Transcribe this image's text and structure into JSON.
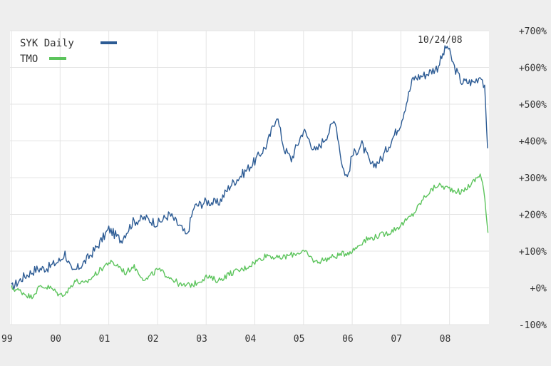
{
  "chart_data": {
    "type": "line",
    "date_label": "10/24/08",
    "x_tick_labels": [
      "99",
      "00",
      "01",
      "02",
      "03",
      "04",
      "05",
      "06",
      "07",
      "08"
    ],
    "x_tick_years": [
      1999,
      2000,
      2001,
      2002,
      2003,
      2004,
      2005,
      2006,
      2007,
      2008
    ],
    "x_range": [
      1998.97,
      2008.81
    ],
    "y_tick_labels": [
      "+700%",
      "+600%",
      "+500%",
      "+400%",
      "+300%",
      "+200%",
      "+100%",
      "+0%",
      "-100%"
    ],
    "y_tick_values": [
      700,
      600,
      500,
      400,
      300,
      200,
      100,
      0,
      -100
    ],
    "ylim": [
      -100,
      700
    ],
    "grid": true,
    "legend_position": "top-left",
    "series": [
      {
        "name": "SYK Daily",
        "color": "#2c5b94",
        "points": [
          [
            1999.0,
            0
          ],
          [
            1999.25,
            30
          ],
          [
            1999.5,
            50
          ],
          [
            1999.75,
            55
          ],
          [
            2000.0,
            75
          ],
          [
            2000.1,
            95
          ],
          [
            2000.25,
            40
          ],
          [
            2000.5,
            70
          ],
          [
            2000.75,
            110
          ],
          [
            2001.0,
            160
          ],
          [
            2001.25,
            130
          ],
          [
            2001.5,
            180
          ],
          [
            2001.75,
            190
          ],
          [
            2002.0,
            175
          ],
          [
            2002.25,
            200
          ],
          [
            2002.5,
            160
          ],
          [
            2002.6,
            140
          ],
          [
            2002.75,
            220
          ],
          [
            2003.0,
            235
          ],
          [
            2003.25,
            230
          ],
          [
            2003.5,
            280
          ],
          [
            2003.75,
            310
          ],
          [
            2004.0,
            345
          ],
          [
            2004.25,
            390
          ],
          [
            2004.45,
            470
          ],
          [
            2004.6,
            380
          ],
          [
            2004.75,
            350
          ],
          [
            2005.0,
            430
          ],
          [
            2005.25,
            370
          ],
          [
            2005.5,
            420
          ],
          [
            2005.65,
            460
          ],
          [
            2005.8,
            330
          ],
          [
            2005.9,
            300
          ],
          [
            2006.0,
            360
          ],
          [
            2006.2,
            390
          ],
          [
            2006.4,
            330
          ],
          [
            2006.6,
            350
          ],
          [
            2006.8,
            400
          ],
          [
            2007.0,
            450
          ],
          [
            2007.25,
            570
          ],
          [
            2007.5,
            580
          ],
          [
            2007.75,
            600
          ],
          [
            2007.95,
            660
          ],
          [
            2008.1,
            600
          ],
          [
            2008.25,
            560
          ],
          [
            2008.5,
            560
          ],
          [
            2008.65,
            580
          ],
          [
            2008.72,
            540
          ],
          [
            2008.78,
            380
          ]
        ]
      },
      {
        "name": "TMO",
        "color": "#5cc45c",
        "points": [
          [
            1999.0,
            0
          ],
          [
            1999.2,
            -10
          ],
          [
            1999.4,
            -25
          ],
          [
            1999.6,
            5
          ],
          [
            1999.8,
            0
          ],
          [
            2000.0,
            -20
          ],
          [
            2000.15,
            -10
          ],
          [
            2000.3,
            20
          ],
          [
            2000.5,
            10
          ],
          [
            2000.75,
            40
          ],
          [
            2001.0,
            70
          ],
          [
            2001.2,
            60
          ],
          [
            2001.35,
            40
          ],
          [
            2001.5,
            60
          ],
          [
            2001.75,
            20
          ],
          [
            2002.0,
            50
          ],
          [
            2002.25,
            30
          ],
          [
            2002.5,
            5
          ],
          [
            2002.75,
            10
          ],
          [
            2003.0,
            30
          ],
          [
            2003.25,
            20
          ],
          [
            2003.5,
            40
          ],
          [
            2003.75,
            50
          ],
          [
            2004.0,
            70
          ],
          [
            2004.25,
            90
          ],
          [
            2004.5,
            80
          ],
          [
            2004.75,
            90
          ],
          [
            2005.0,
            100
          ],
          [
            2005.25,
            70
          ],
          [
            2005.5,
            80
          ],
          [
            2005.75,
            90
          ],
          [
            2006.0,
            100
          ],
          [
            2006.25,
            130
          ],
          [
            2006.5,
            140
          ],
          [
            2006.75,
            150
          ],
          [
            2007.0,
            170
          ],
          [
            2007.25,
            200
          ],
          [
            2007.5,
            250
          ],
          [
            2007.75,
            280
          ],
          [
            2008.0,
            270
          ],
          [
            2008.25,
            260
          ],
          [
            2008.5,
            290
          ],
          [
            2008.63,
            310
          ],
          [
            2008.7,
            270
          ],
          [
            2008.75,
            200
          ],
          [
            2008.79,
            150
          ]
        ]
      }
    ]
  }
}
